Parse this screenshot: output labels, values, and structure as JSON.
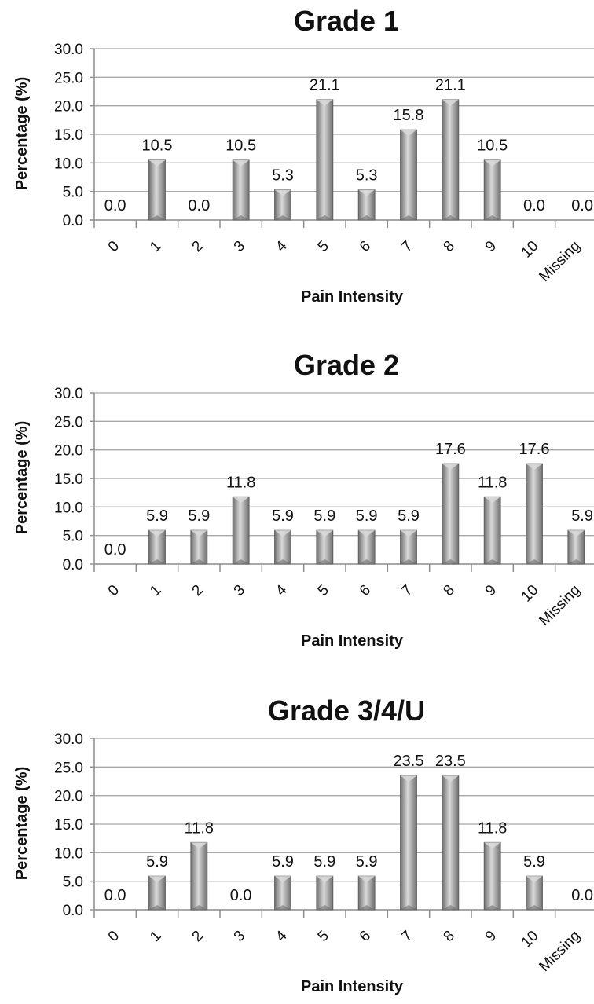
{
  "chart_data": [
    {
      "type": "bar",
      "title": "Grade 1",
      "xlabel": "Pain Intensity",
      "ylabel": "Percentage (%)",
      "ylim": [
        0,
        30
      ],
      "yticks": [
        "0.0",
        "5.0",
        "10.0",
        "15.0",
        "20.0",
        "25.0",
        "30.0"
      ],
      "categories": [
        "0",
        "1",
        "2",
        "3",
        "4",
        "5",
        "6",
        "7",
        "8",
        "9",
        "10",
        "Missing"
      ],
      "values": [
        0.0,
        10.5,
        0.0,
        10.5,
        5.3,
        21.1,
        5.3,
        15.8,
        21.1,
        10.5,
        0.0,
        0.0
      ],
      "value_labels": [
        "0.0",
        "10.5",
        "0.0",
        "10.5",
        "5.3",
        "21.1",
        "5.3",
        "15.8",
        "21.1",
        "10.5",
        "0.0",
        "0.0"
      ],
      "grid": true,
      "legend": "none"
    },
    {
      "type": "bar",
      "title": "Grade 2",
      "xlabel": "Pain Intensity",
      "ylabel": "Percentage (%)",
      "ylim": [
        0,
        30
      ],
      "yticks": [
        "0.0",
        "5.0",
        "10.0",
        "15.0",
        "20.0",
        "25.0",
        "30.0"
      ],
      "categories": [
        "0",
        "1",
        "2",
        "3",
        "4",
        "5",
        "6",
        "7",
        "8",
        "9",
        "10",
        "Missing"
      ],
      "values": [
        0.0,
        5.9,
        5.9,
        11.8,
        5.9,
        5.9,
        5.9,
        5.9,
        17.6,
        11.8,
        17.6,
        5.9
      ],
      "value_labels": [
        "0.0",
        "5.9",
        "5.9",
        "11.8",
        "5.9",
        "5.9",
        "5.9",
        "5.9",
        "17.6",
        "11.8",
        "17.6",
        "5.9"
      ],
      "grid": true,
      "legend": "none"
    },
    {
      "type": "bar",
      "title": "Grade 3/4/U",
      "xlabel": "Pain Intensity",
      "ylabel": "Percentage (%)",
      "ylim": [
        0,
        30
      ],
      "yticks": [
        "0.0",
        "5.0",
        "10.0",
        "15.0",
        "20.0",
        "25.0",
        "30.0"
      ],
      "categories": [
        "0",
        "1",
        "2",
        "3",
        "4",
        "5",
        "6",
        "7",
        "8",
        "9",
        "10",
        "Missing"
      ],
      "values": [
        0.0,
        5.9,
        11.8,
        0.0,
        5.9,
        5.9,
        5.9,
        23.5,
        23.5,
        11.8,
        5.9,
        0.0
      ],
      "value_labels": [
        "0.0",
        "5.9",
        "11.8",
        "0.0",
        "5.9",
        "5.9",
        "5.9",
        "23.5",
        "23.5",
        "11.8",
        "5.9",
        "0.0"
      ],
      "grid": true,
      "legend": "none"
    }
  ],
  "colors": {
    "bar_light": "#d9d9d9",
    "bar_mid": "#a6a6a6",
    "bar_dark": "#6e6e6e",
    "grid": "#a8a8a8"
  }
}
